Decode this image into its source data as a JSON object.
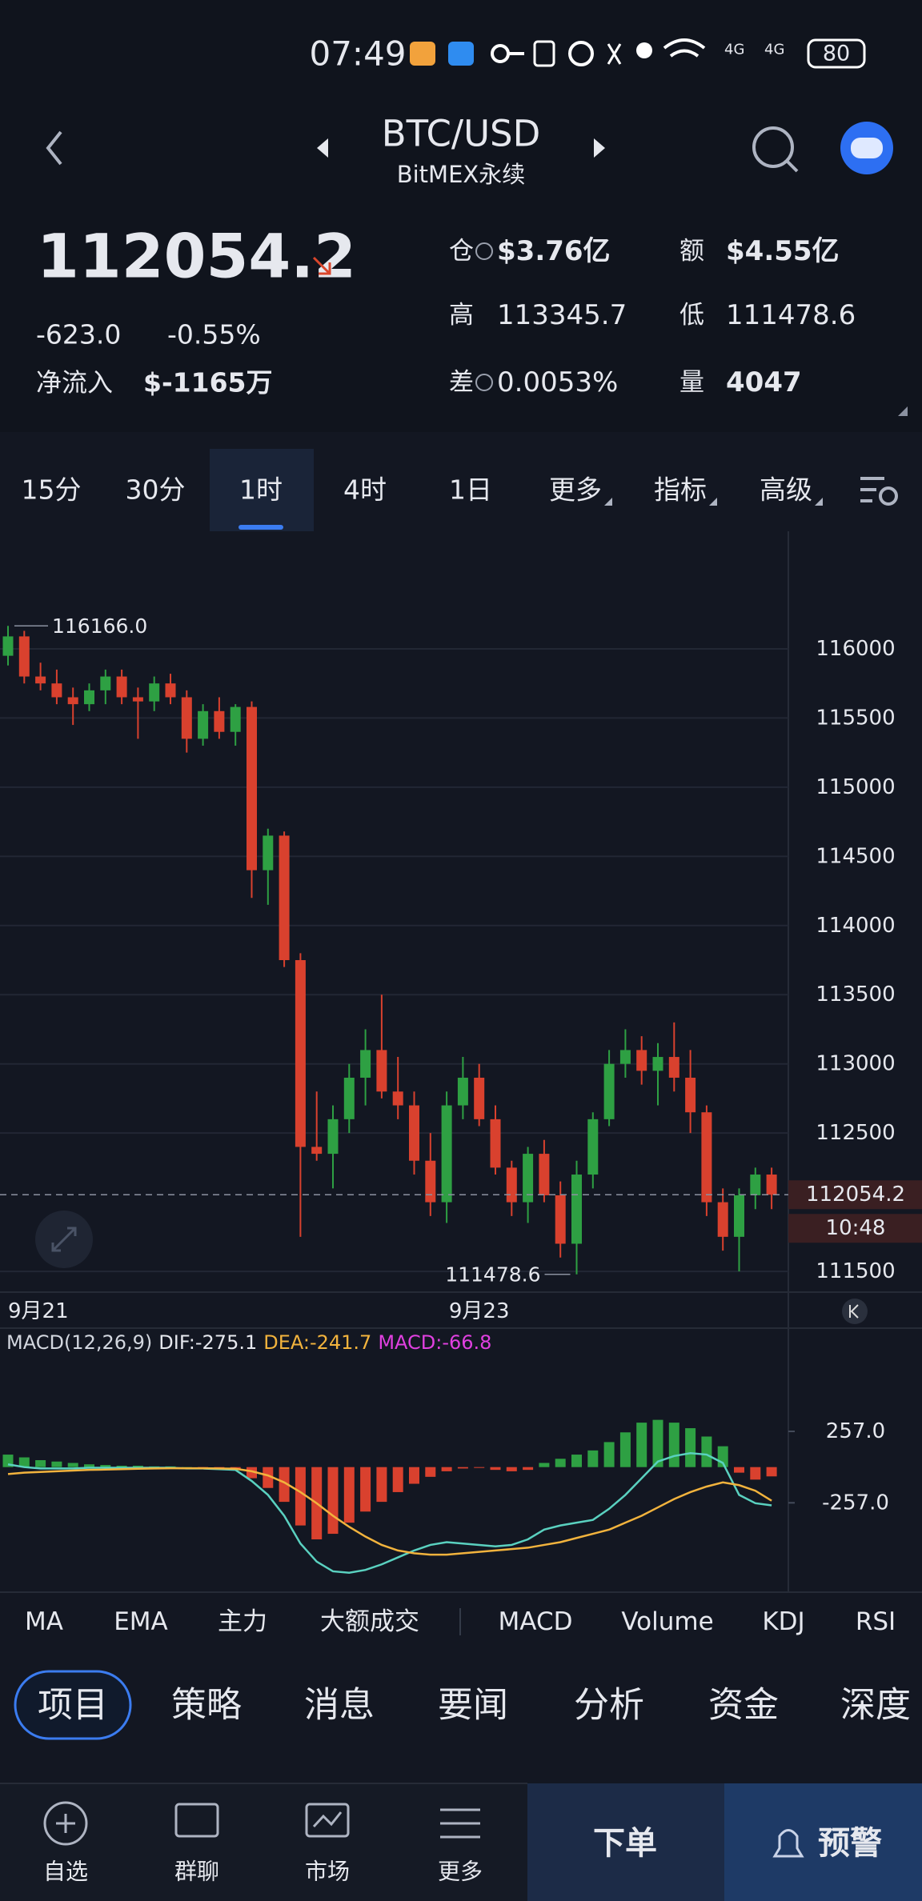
{
  "status_bar": {
    "time": "07:49",
    "network": [
      "4G",
      "4G"
    ],
    "battery": "80"
  },
  "header": {
    "title": "BTC/USD",
    "subtitle": "BitMEX永续"
  },
  "quote": {
    "price": "112054.2",
    "change": "-623.0",
    "change_pct": "-0.55%",
    "net_inflow_label": "净流入",
    "net_inflow": "$-1165万",
    "oi_label": "仓",
    "oi": "$3.76亿",
    "turnover_label": "额",
    "turnover": "$4.55亿",
    "high_label": "高",
    "high": "113345.7",
    "low_label": "低",
    "low": "111478.6",
    "diff_label": "差",
    "diff": "0.0053%",
    "volume_label": "量",
    "volume": "4047"
  },
  "timeframes": {
    "items": [
      "15分",
      "30分",
      "1时",
      "4时",
      "1日",
      "更多",
      "指标",
      "高级"
    ],
    "active_index": 2
  },
  "chart_data": [
    {
      "type": "candlestick",
      "up_color": "#2ea043",
      "down_color": "#d9412e",
      "categories": [
        "9月21",
        null,
        null,
        null,
        null,
        null,
        null,
        null,
        null,
        null,
        null,
        null,
        null,
        null,
        null,
        null,
        null,
        null,
        null,
        null,
        null,
        null,
        null,
        null,
        null,
        null,
        null,
        null,
        null,
        "9月23",
        null,
        null,
        null,
        null,
        null,
        null,
        null,
        null,
        null,
        null,
        null,
        null,
        null,
        null,
        null,
        null,
        null,
        null
      ],
      "candles": [
        [
          115950,
          116166,
          115880,
          116090
        ],
        [
          116090,
          116130,
          115750,
          115800
        ],
        [
          115800,
          115900,
          115700,
          115750
        ],
        [
          115750,
          115850,
          115600,
          115650
        ],
        [
          115650,
          115720,
          115450,
          115600
        ],
        [
          115600,
          115750,
          115550,
          115700
        ],
        [
          115700,
          115850,
          115600,
          115800
        ],
        [
          115800,
          115850,
          115600,
          115650
        ],
        [
          115650,
          115720,
          115350,
          115620
        ],
        [
          115620,
          115800,
          115550,
          115750
        ],
        [
          115750,
          115820,
          115600,
          115650
        ],
        [
          115650,
          115700,
          115250,
          115350
        ],
        [
          115350,
          115600,
          115300,
          115550
        ],
        [
          115550,
          115650,
          115350,
          115400
        ],
        [
          115400,
          115600,
          115300,
          115580
        ],
        [
          115580,
          115620,
          114200,
          114400
        ],
        [
          114400,
          114700,
          114150,
          114650
        ],
        [
          114650,
          114680,
          113700,
          113750
        ],
        [
          113750,
          113800,
          111750,
          112400
        ],
        [
          112400,
          112800,
          112300,
          112350
        ],
        [
          112350,
          112700,
          112100,
          112600
        ],
        [
          112600,
          113000,
          112500,
          112900
        ],
        [
          112900,
          113250,
          112700,
          113100
        ],
        [
          113100,
          113500,
          112750,
          112800
        ],
        [
          112800,
          113050,
          112600,
          112700
        ],
        [
          112700,
          112800,
          112200,
          112300
        ],
        [
          112300,
          112500,
          111900,
          112000
        ],
        [
          112000,
          112800,
          111850,
          112700
        ],
        [
          112700,
          113050,
          112600,
          112900
        ],
        [
          112900,
          113000,
          112550,
          112600
        ],
        [
          112600,
          112700,
          112200,
          112250
        ],
        [
          112250,
          112300,
          111900,
          112000
        ],
        [
          112000,
          112400,
          111850,
          112350
        ],
        [
          112350,
          112450,
          112000,
          112050
        ],
        [
          112050,
          112150,
          111600,
          111700
        ],
        [
          111700,
          112300,
          111478.6,
          112200
        ],
        [
          112200,
          112650,
          112100,
          112600
        ],
        [
          112600,
          113100,
          112550,
          113000
        ],
        [
          113000,
          113250,
          112900,
          113100
        ],
        [
          113100,
          113200,
          112850,
          112950
        ],
        [
          112950,
          113150,
          112700,
          113050
        ],
        [
          113050,
          113300,
          112800,
          112900
        ],
        [
          112900,
          113100,
          112500,
          112650
        ],
        [
          112650,
          112700,
          111900,
          112000
        ],
        [
          112000,
          112100,
          111650,
          111750
        ],
        [
          111750,
          112100,
          111500,
          112050
        ],
        [
          112050,
          112250,
          111950,
          112200
        ],
        [
          112200,
          112250,
          111950,
          112054.2
        ]
      ],
      "ylim": [
        111350,
        116850
      ],
      "yticks": [
        116000,
        115500,
        115000,
        114500,
        114000,
        113500,
        113000,
        112500,
        111500
      ],
      "grid": true,
      "annotations": {
        "high": "116166.0",
        "low": "111478.6",
        "last_price": "112054.2",
        "countdown": "10:48"
      }
    },
    {
      "type": "macd",
      "title": "MACD(12,26,9)",
      "legend": [
        "DIF:-275.1",
        "DEA:-241.7",
        "MACD:-66.8"
      ],
      "ylim": [
        -900,
        1000
      ],
      "yticks": [
        {
          "value": 257,
          "label": "257.0"
        },
        {
          "value": -257,
          "label": "-257.0"
        }
      ],
      "histogram": {
        "up_color": "#2ea043",
        "down_color": "#d9412e",
        "values": [
          90,
          70,
          50,
          40,
          30,
          20,
          15,
          10,
          10,
          5,
          5,
          0,
          -5,
          -10,
          -15,
          -80,
          -150,
          -250,
          -420,
          -520,
          -480,
          -400,
          -320,
          -250,
          -180,
          -120,
          -70,
          -30,
          -10,
          -5,
          -20,
          -30,
          -20,
          30,
          60,
          90,
          120,
          180,
          250,
          320,
          340,
          320,
          280,
          220,
          150,
          -40,
          -90,
          -66.8
        ]
      },
      "series": [
        {
          "name": "DIF",
          "color": "#5ad1c0",
          "values": [
            20,
            0,
            -10,
            -10,
            -10,
            -5,
            -5,
            -5,
            -5,
            -5,
            -5,
            -10,
            -10,
            -15,
            -20,
            -100,
            -200,
            -350,
            -550,
            -680,
            -750,
            -760,
            -740,
            -700,
            -650,
            -600,
            -560,
            -540,
            -550,
            -560,
            -570,
            -560,
            -520,
            -450,
            -420,
            -400,
            -380,
            -300,
            -200,
            -80,
            40,
            80,
            100,
            90,
            30,
            -200,
            -260,
            -275.1
          ]
        },
        {
          "name": "DEA",
          "color": "#f2b33d",
          "values": [
            -50,
            -40,
            -35,
            -30,
            -25,
            -20,
            -18,
            -15,
            -12,
            -10,
            -8,
            -8,
            -8,
            -10,
            -12,
            -30,
            -60,
            -110,
            -180,
            -260,
            -350,
            -430,
            -500,
            -560,
            -600,
            -620,
            -630,
            -630,
            -620,
            -610,
            -600,
            -590,
            -580,
            -560,
            -540,
            -510,
            -480,
            -450,
            -400,
            -350,
            -290,
            -230,
            -180,
            -140,
            -110,
            -130,
            -170,
            -241.7
          ]
        }
      ]
    }
  ],
  "indicators": {
    "items": [
      "MA",
      "EMA",
      "主力",
      "大额成交",
      "MACD",
      "Volume",
      "KDJ",
      "RSI"
    ],
    "active_index": 4
  },
  "sections": {
    "items": [
      "项目",
      "策略",
      "消息",
      "要闻",
      "分析",
      "资金",
      "深度"
    ],
    "active_index": 0
  },
  "nav": {
    "items": [
      "自选",
      "群聊",
      "市场",
      "更多"
    ],
    "order_button": "下单",
    "alert_button": "预警"
  }
}
